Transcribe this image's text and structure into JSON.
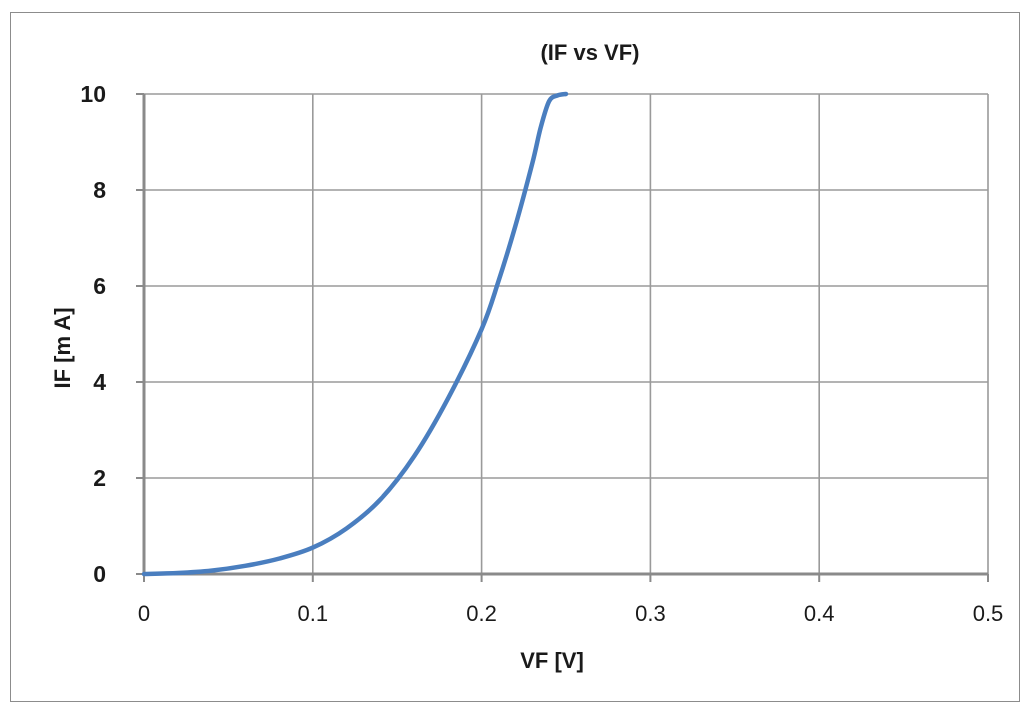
{
  "chart_data": {
    "type": "line",
    "title": "(IF vs VF)",
    "xlabel": "VF [V]",
    "ylabel": "IF [m A]",
    "xlim": [
      0,
      0.5
    ],
    "ylim": [
      0,
      10
    ],
    "x_ticks": [
      "0",
      "0.1",
      "0.2",
      "0.3",
      "0.4",
      "0.5"
    ],
    "y_ticks": [
      "0",
      "2",
      "4",
      "6",
      "8",
      "10"
    ],
    "grid": true,
    "legend": "none",
    "line_color": "#4a7ebf",
    "series": [
      {
        "x": [
          0,
          0.02,
          0.04,
          0.06,
          0.08,
          0.1,
          0.12,
          0.14,
          0.16,
          0.18,
          0.2,
          0.21,
          0.22,
          0.23,
          0.235,
          0.24,
          0.245,
          0.25
        ],
        "values": [
          0,
          0.02,
          0.07,
          0.17,
          0.32,
          0.55,
          0.95,
          1.55,
          2.45,
          3.65,
          5.1,
          6.1,
          7.25,
          8.55,
          9.3,
          9.85,
          9.97,
          10.0
        ]
      }
    ]
  }
}
